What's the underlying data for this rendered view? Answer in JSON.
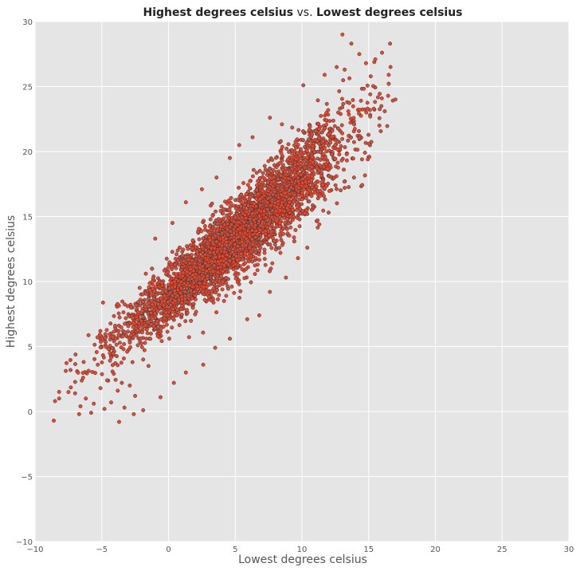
{
  "chart_data": {
    "type": "scatter",
    "title_parts": {
      "y_name": "Highest degrees celsius",
      "separator": " vs. ",
      "x_name": "Lowest degrees celsius"
    },
    "xlabel": "Lowest degrees celsius",
    "ylabel": "Highest degrees celsius",
    "xlim": [
      -10,
      30
    ],
    "ylim": [
      -10,
      30
    ],
    "xticks": [
      -10,
      -5,
      0,
      5,
      10,
      15,
      20,
      25,
      30
    ],
    "yticks": [
      -10,
      -5,
      0,
      5,
      10,
      15,
      20,
      25,
      30
    ],
    "xtick_labels": [
      "−10",
      "−5",
      "0",
      "5",
      "10",
      "15",
      "20",
      "25",
      "30"
    ],
    "ytick_labels": [
      "−10",
      "−5",
      "0",
      "5",
      "10",
      "15",
      "20",
      "25",
      "30"
    ],
    "grid": true,
    "background": "#e5e5e5",
    "grid_color": "#ffffff",
    "marker_color": "#e24a33",
    "marker_edge_color": "#333333",
    "trend": {
      "x_min": -8.7,
      "x_max": 17.0,
      "y_at_x_min": 1.0,
      "y_at_x_max": 24.0
    },
    "points": [
      [
        -8.6,
        -0.7
      ],
      [
        -8.5,
        0.8
      ],
      [
        -8.2,
        1.0
      ],
      [
        -7.5,
        1.5
      ],
      [
        -7.0,
        1.4
      ],
      [
        -6.7,
        -0.2
      ],
      [
        -6.6,
        0.4
      ],
      [
        -6.4,
        2.6
      ],
      [
        -6.2,
        1.0
      ],
      [
        -5.8,
        -0.1
      ],
      [
        -5.6,
        0.6
      ],
      [
        -5.3,
        3.6
      ],
      [
        -5.1,
        1.8
      ],
      [
        -4.8,
        0.2
      ],
      [
        -4.6,
        2.4
      ],
      [
        -4.3,
        0.7
      ],
      [
        -4.1,
        2.9
      ],
      [
        -4.0,
        6.6
      ],
      [
        -3.8,
        1.6
      ],
      [
        -3.7,
        -0.8
      ],
      [
        -3.5,
        2.2
      ],
      [
        -3.3,
        0.3
      ],
      [
        -3.1,
        4.6
      ],
      [
        -2.9,
        2.0
      ],
      [
        -2.7,
        3.8
      ],
      [
        -2.5,
        1.2
      ],
      [
        -2.3,
        5.1
      ],
      [
        -2.1,
        8.6
      ],
      [
        -1.9,
        4.0
      ],
      [
        -1.7,
        10.6
      ],
      [
        -1.5,
        3.5
      ],
      [
        -1.3,
        6.7
      ],
      [
        -1.0,
        13.3
      ],
      [
        -0.8,
        5.8
      ],
      [
        -0.5,
        9.9
      ],
      [
        -0.2,
        7.6
      ],
      [
        0.3,
        14.5
      ],
      [
        0.6,
        12.1
      ],
      [
        1.3,
        16.1
      ],
      [
        2.5,
        17.1
      ],
      [
        3.6,
        18.0
      ],
      [
        4.6,
        19.5
      ],
      [
        5.3,
        20.5
      ],
      [
        6.3,
        21.1
      ],
      [
        7.6,
        22.6
      ],
      [
        8.5,
        22.1
      ],
      [
        10.1,
        25.1
      ],
      [
        11.7,
        25.9
      ],
      [
        12.6,
        26.5
      ],
      [
        13.2,
        26.3
      ],
      [
        13.7,
        28.3
      ],
      [
        14.3,
        27.5
      ],
      [
        14.8,
        26.8
      ],
      [
        15.5,
        27.1
      ],
      [
        16.0,
        27.6
      ],
      [
        16.6,
        28.3
      ],
      [
        17.0,
        24.0
      ],
      [
        16.5,
        25.9
      ],
      [
        16.2,
        23.1
      ],
      [
        15.8,
        22.0
      ],
      [
        15.0,
        20.6
      ],
      [
        14.5,
        19.4
      ],
      [
        13.9,
        18.0
      ],
      [
        13.2,
        17.2
      ],
      [
        12.0,
        15.3
      ],
      [
        11.3,
        14.4
      ],
      [
        10.4,
        12.6
      ],
      [
        9.7,
        11.8
      ],
      [
        8.8,
        10.3
      ],
      [
        7.6,
        9.2
      ],
      [
        6.8,
        7.4
      ],
      [
        5.9,
        7.1
      ],
      [
        4.6,
        5.6
      ],
      [
        3.5,
        4.9
      ],
      [
        2.6,
        3.6
      ],
      [
        1.3,
        3.0
      ],
      [
        0.4,
        2.2
      ],
      [
        -0.6,
        1.1
      ],
      [
        -1.9,
        0.1
      ],
      [
        -2.6,
        -0.2
      ]
    ]
  }
}
